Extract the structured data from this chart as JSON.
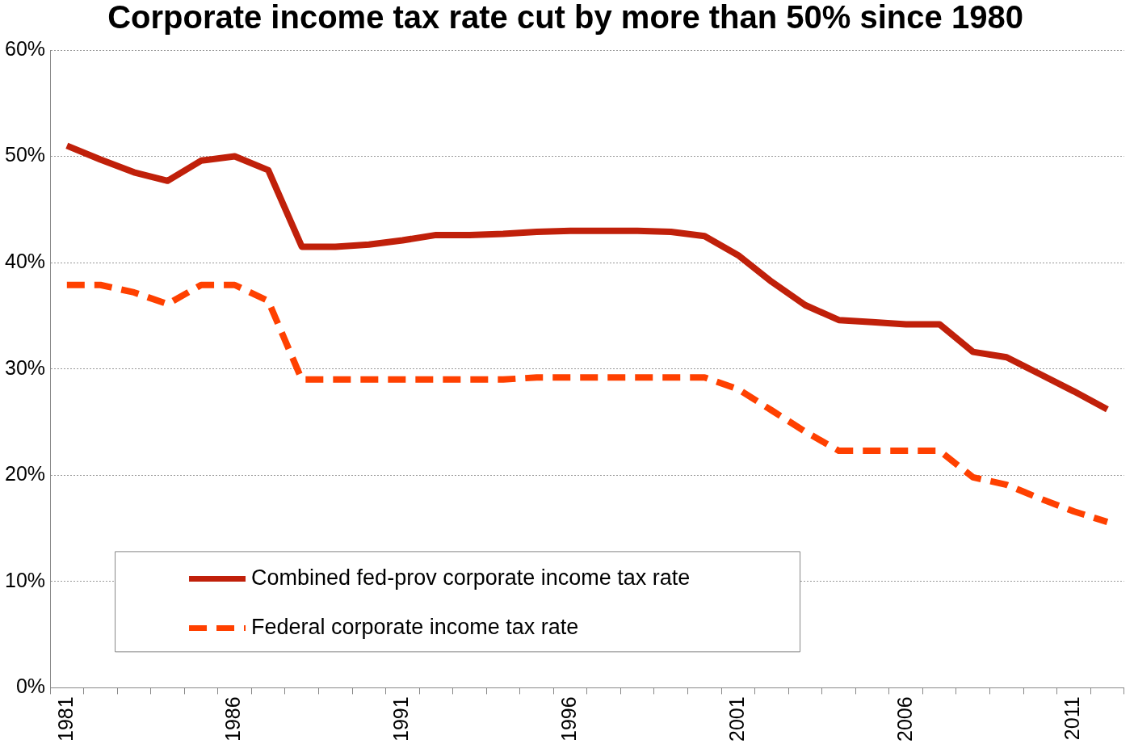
{
  "chart_data": {
    "type": "line",
    "title": "Corporate income tax rate cut by more than 50% since 1980",
    "categories": [
      "1981",
      null,
      null,
      null,
      null,
      "1986",
      null,
      null,
      null,
      null,
      "1991",
      null,
      null,
      null,
      null,
      "1996",
      null,
      null,
      null,
      null,
      "2001",
      null,
      null,
      null,
      null,
      "2006",
      null,
      null,
      null,
      null,
      "2011",
      null
    ],
    "series": [
      {
        "name": "Combined fed-prov corporate income tax rate",
        "color": "#c0200a",
        "line_style": "solid",
        "values": [
          51.0,
          49.7,
          48.5,
          47.7,
          49.6,
          50.0,
          48.7,
          41.5,
          41.5,
          41.7,
          42.1,
          42.6,
          42.6,
          42.7,
          42.9,
          43.0,
          43.0,
          43.0,
          42.9,
          42.5,
          40.7,
          38.2,
          36.0,
          34.6,
          34.4,
          34.2,
          34.2,
          31.6,
          31.1,
          29.5,
          27.9,
          26.2
        ]
      },
      {
        "name": "Federal corporate income tax rate",
        "color": "#ff4000",
        "line_style": "dashed",
        "values": [
          37.9,
          37.9,
          37.2,
          36.1,
          37.9,
          37.9,
          36.4,
          29.0,
          29.0,
          29.0,
          29.0,
          29.0,
          29.0,
          29.0,
          29.2,
          29.2,
          29.2,
          29.2,
          29.2,
          29.2,
          28.1,
          26.1,
          24.1,
          22.3,
          22.3,
          22.3,
          22.3,
          19.8,
          19.1,
          17.8,
          16.6,
          15.6
        ]
      }
    ],
    "ylim": [
      0,
      60
    ],
    "yticks": [
      {
        "value": 0,
        "label": "0%"
      },
      {
        "value": 10,
        "label": "10%"
      },
      {
        "value": 20,
        "label": "20%"
      },
      {
        "value": 30,
        "label": "30%"
      },
      {
        "value": 40,
        "label": "40%"
      },
      {
        "value": 50,
        "label": "50%"
      },
      {
        "value": 60,
        "label": "60%"
      }
    ],
    "grid": "y",
    "legend": "bottom left",
    "marker": "none"
  }
}
